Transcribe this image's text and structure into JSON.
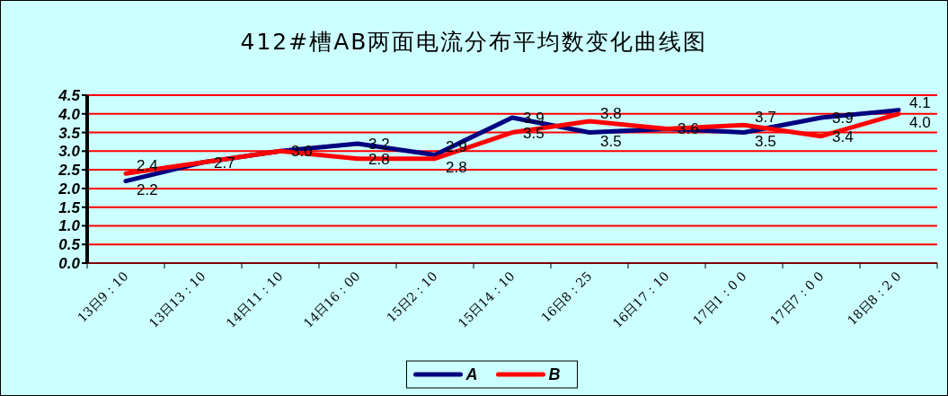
{
  "chart_data": {
    "type": "line",
    "title": "412#槽AB两面电流分布平均数变化曲线图",
    "categories": [
      "13日9：10",
      "13日13：10",
      "14日11：10",
      "14日16：00",
      "15日2：10",
      "15日14：10",
      "16日8：25",
      "16日17：10",
      "17日1：0 0",
      "17日7：0 0",
      "18日8：2 0"
    ],
    "series": [
      {
        "name": "A",
        "color": "#000080",
        "values": [
          2.2,
          2.7,
          3.0,
          3.2,
          2.9,
          3.9,
          3.5,
          3.6,
          3.5,
          3.9,
          4.1
        ],
        "value_labels": [
          "2.2",
          "2.7",
          "3.0",
          "3.2",
          "2.9",
          "3.9",
          "3.5",
          "3.6",
          "3.5",
          "3.9",
          "4.1"
        ]
      },
      {
        "name": "B",
        "color": "#ff0000",
        "values": [
          2.4,
          2.7,
          3.0,
          2.8,
          2.8,
          3.5,
          3.8,
          3.6,
          3.7,
          3.4,
          4.0
        ],
        "value_labels": [
          "2.4",
          null,
          null,
          "2.8",
          "2.8",
          "3.5",
          "3.8",
          null,
          "3.7",
          "3.4",
          "4.0"
        ]
      }
    ],
    "ylim": [
      0,
      4.5
    ],
    "yticks": [
      {
        "value": 0,
        "label": "0.0"
      },
      {
        "value": 0.5,
        "label": "0.5"
      },
      {
        "value": 1,
        "label": "1.0"
      },
      {
        "value": 1.5,
        "label": "1.5"
      },
      {
        "value": 2,
        "label": "2.0"
      },
      {
        "value": 2.5,
        "label": "2.5"
      },
      {
        "value": 3,
        "label": "3.0"
      },
      {
        "value": 3.5,
        "label": "3.5"
      },
      {
        "value": 4,
        "label": "4.0"
      },
      {
        "value": 4.5,
        "label": "4.5"
      }
    ],
    "grid": "y",
    "legend": "bottom",
    "marker": "none",
    "line_style": "solid"
  }
}
